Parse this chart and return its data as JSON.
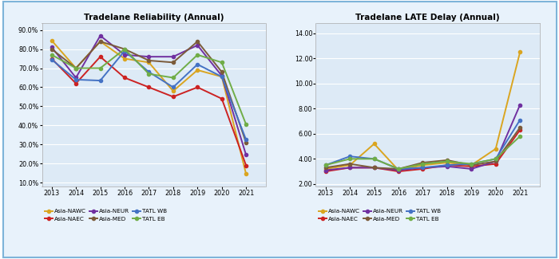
{
  "years": [
    2013,
    2014,
    2015,
    2016,
    2017,
    2018,
    2019,
    2020,
    2021
  ],
  "reliability": {
    "Asia-NAWC": [
      0.845,
      0.7,
      0.84,
      0.75,
      0.73,
      0.58,
      0.69,
      0.655,
      0.145
    ],
    "Asia-NAEC": [
      0.75,
      0.62,
      0.76,
      0.65,
      0.6,
      0.55,
      0.6,
      0.54,
      0.19
    ],
    "Asia-NEUR": [
      0.81,
      0.65,
      0.87,
      0.77,
      0.76,
      0.76,
      0.82,
      0.66,
      0.245
    ],
    "Asia-MED": [
      0.8,
      0.7,
      0.84,
      0.8,
      0.74,
      0.73,
      0.84,
      0.68,
      0.31
    ],
    "TATL WB": [
      0.745,
      0.64,
      0.635,
      0.79,
      0.68,
      0.6,
      0.72,
      0.655,
      0.325
    ],
    "TATL EB": [
      0.77,
      0.7,
      0.7,
      0.8,
      0.67,
      0.65,
      0.77,
      0.73,
      0.405
    ]
  },
  "late_delay": {
    "Asia-NAWC": [
      3.2,
      3.5,
      5.2,
      3.1,
      3.5,
      3.7,
      3.5,
      4.8,
      12.5
    ],
    "Asia-NAEC": [
      3.0,
      3.3,
      3.3,
      3.0,
      3.2,
      3.5,
      3.4,
      3.6,
      6.3
    ],
    "Asia-NEUR": [
      3.1,
      3.3,
      3.3,
      3.1,
      3.3,
      3.4,
      3.2,
      3.8,
      8.3
    ],
    "Asia-MED": [
      3.3,
      3.6,
      3.3,
      3.2,
      3.7,
      3.9,
      3.5,
      3.8,
      6.5
    ],
    "TATL WB": [
      3.5,
      4.2,
      4.0,
      3.2,
      3.3,
      3.5,
      3.6,
      4.0,
      7.1
    ],
    "TATL EB": [
      3.5,
      4.0,
      4.0,
      3.2,
      3.6,
      3.8,
      3.6,
      4.0,
      5.8
    ]
  },
  "colors": {
    "Asia-NAWC": "#DAA520",
    "Asia-NAEC": "#CC2222",
    "Asia-NEUR": "#7030A0",
    "Asia-MED": "#7B5B3A",
    "TATL WB": "#4472C4",
    "TATL EB": "#70AD47"
  },
  "title_reliability": "Tradelane Reliability (Annual)",
  "title_late_delay": "Tradelane LATE Delay (Annual)",
  "reliability_ylim": [
    0.08,
    0.935
  ],
  "reliability_yticks": [
    0.1,
    0.2,
    0.3,
    0.4,
    0.5,
    0.6,
    0.7,
    0.8,
    0.9
  ],
  "late_delay_ylim": [
    1.8,
    14.8
  ],
  "late_delay_yticks": [
    2.0,
    4.0,
    6.0,
    8.0,
    10.0,
    12.0,
    14.0
  ],
  "plot_bg_color": "#DDEAF6",
  "fig_bg_color": "#FFFFFF",
  "outer_border_color": "#AAAACC",
  "legend_order_row1": [
    "Asia-NAWC",
    "Asia-NAEC",
    "Asia-NEUR"
  ],
  "legend_order_row2": [
    "Asia-MED",
    "TATL WB",
    "TATL EB"
  ]
}
